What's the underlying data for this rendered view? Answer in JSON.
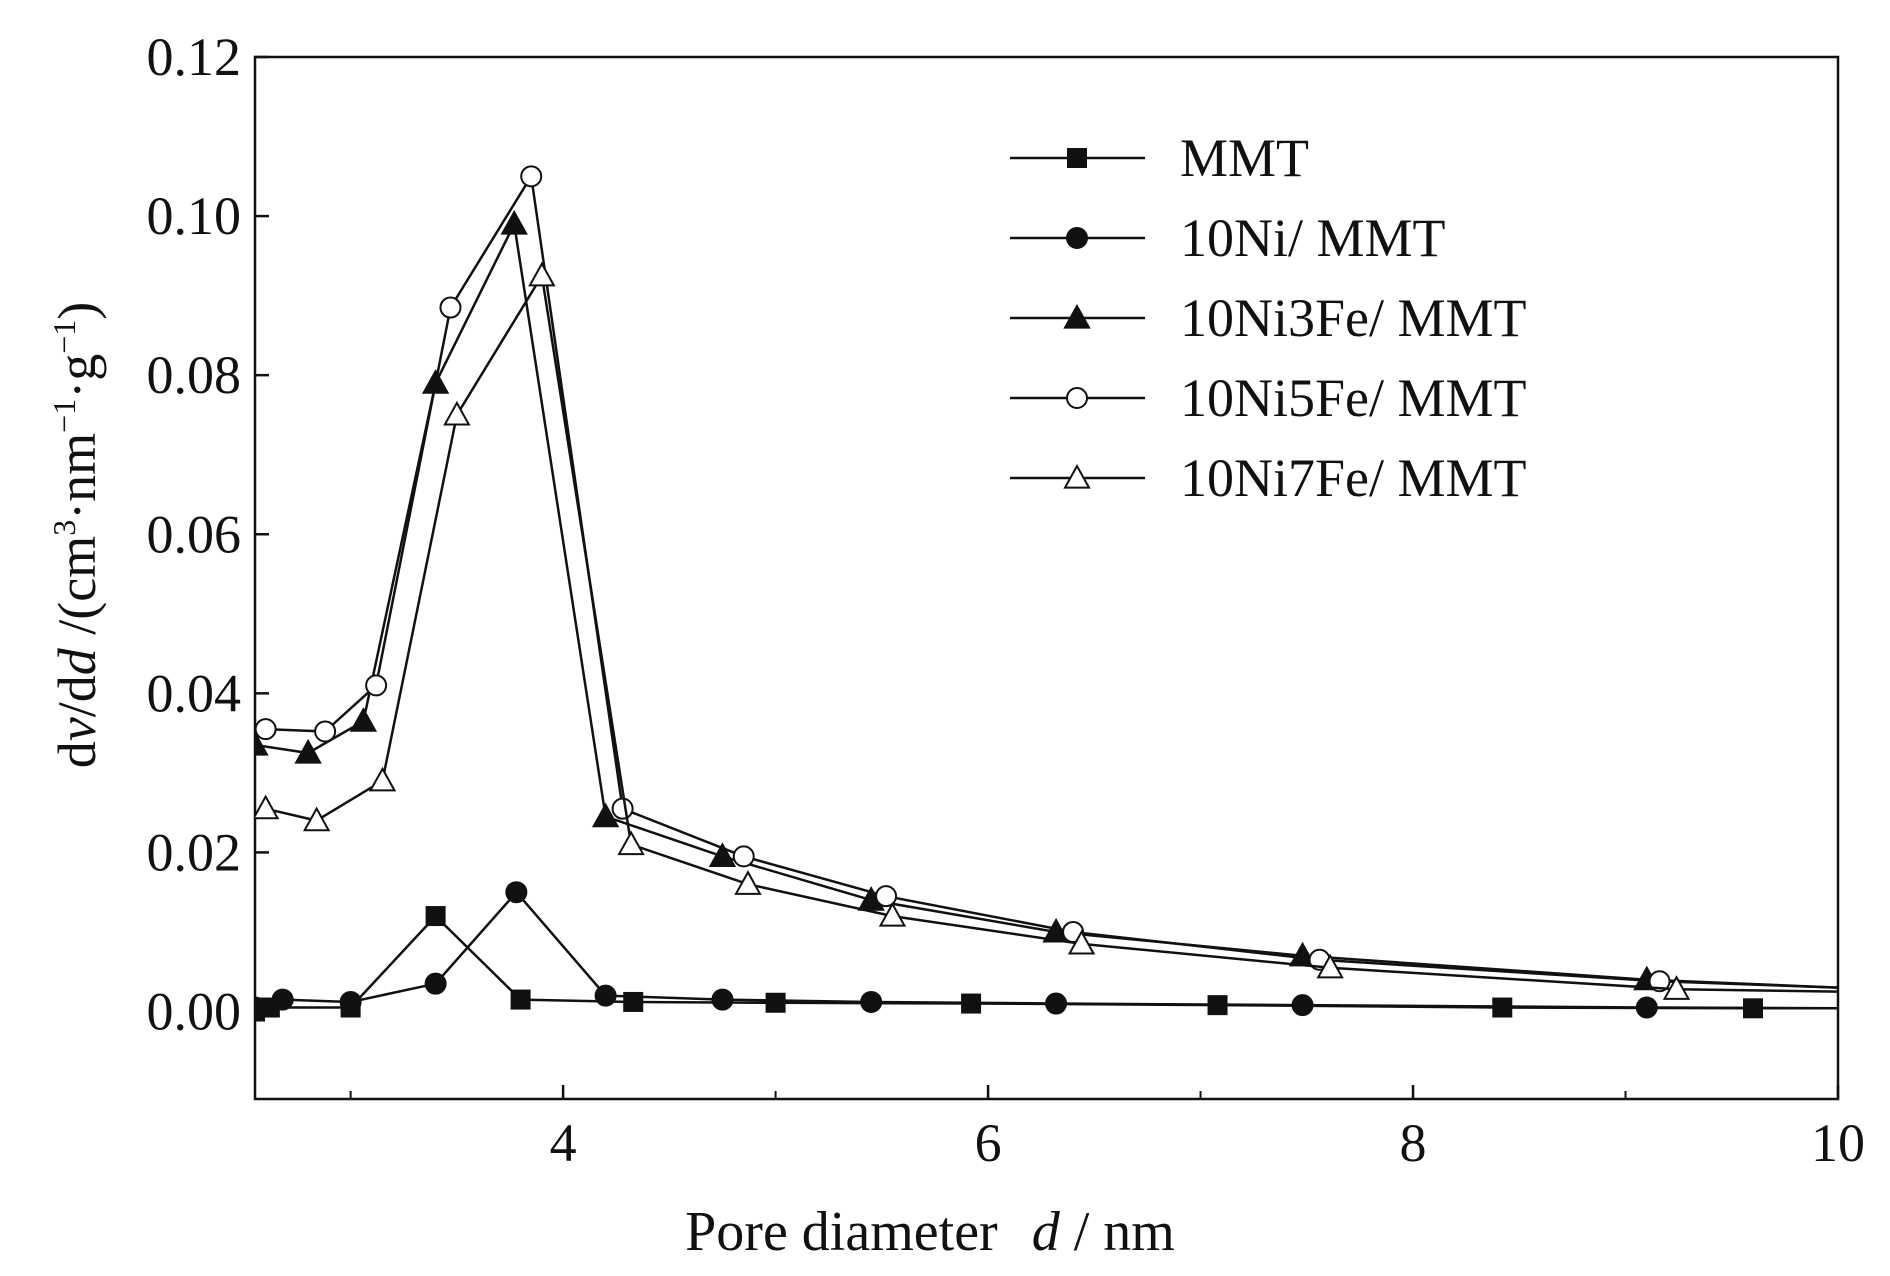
{
  "chart_data": {
    "type": "line",
    "title": "",
    "xlabel": {
      "main": "Pore diameter",
      "var": "d",
      "unit": " / nm"
    },
    "ylabel": {
      "main": "dv/dd /(cm3·nm−1·g−1)",
      "parts": [
        "d",
        "v",
        "/d",
        "d",
        " /(cm",
        "3",
        "·nm",
        "−1",
        "·g",
        "−1",
        ")"
      ]
    },
    "xlim": [
      2.55,
      10
    ],
    "ylim": [
      -0.011,
      0.12
    ],
    "x_ticks": [
      4,
      6,
      8,
      10
    ],
    "x_tick_labels": [
      "4",
      "6",
      "8",
      "10"
    ],
    "x_minor_ticks": [
      3,
      5,
      7,
      9
    ],
    "y_ticks": [
      0.0,
      0.02,
      0.04,
      0.06,
      0.08,
      0.1,
      0.12
    ],
    "y_tick_labels": [
      "0.00",
      "0.02",
      "0.04",
      "0.06",
      "0.08",
      "0.10",
      "0.12"
    ],
    "grid": false,
    "legend_position": "top-right",
    "series": [
      {
        "name": "MMT",
        "marker": "square-filled",
        "x": [
          2.55,
          2.62,
          3.0,
          3.4,
          3.8,
          4.33,
          5.0,
          5.92,
          7.08,
          8.42,
          9.6,
          10.0
        ],
        "y": [
          0.0,
          0.0005,
          0.0005,
          0.012,
          0.0015,
          0.0012,
          0.0011,
          0.001,
          0.0008,
          0.0005,
          0.0004,
          0.0004
        ]
      },
      {
        "name": "10Ni/ MMT",
        "marker": "circle-filled",
        "x": [
          2.55,
          2.68,
          3.0,
          3.4,
          3.78,
          4.2,
          4.75,
          5.45,
          6.32,
          7.48,
          9.1,
          10.0
        ],
        "y": [
          0.0005,
          0.0015,
          0.0012,
          0.0035,
          0.015,
          0.002,
          0.0015,
          0.0012,
          0.001,
          0.0008,
          0.0005,
          0.0004
        ]
      },
      {
        "name": "10Ni3Fe/ MMT",
        "marker": "triangle-filled",
        "x": [
          2.55,
          2.8,
          3.06,
          3.4,
          3.77,
          4.2,
          4.75,
          5.45,
          6.32,
          7.48,
          9.1,
          10.0
        ],
        "y": [
          0.0335,
          0.0325,
          0.0365,
          0.079,
          0.099,
          0.0245,
          0.0195,
          0.014,
          0.01,
          0.007,
          0.004,
          0.003
        ]
      },
      {
        "name": "10Ni5Fe/ MMT",
        "marker": "circle-open",
        "x": [
          2.6,
          2.88,
          3.12,
          3.47,
          3.85,
          4.28,
          4.85,
          5.52,
          6.4,
          7.56,
          9.16,
          10.0
        ],
        "y": [
          0.0355,
          0.0352,
          0.041,
          0.0885,
          0.105,
          0.0255,
          0.0195,
          0.0145,
          0.01,
          0.0065,
          0.0038,
          0.003
        ]
      },
      {
        "name": "10Ni7Fe/ MMT",
        "marker": "triangle-open",
        "x": [
          2.6,
          2.84,
          3.15,
          3.5,
          3.9,
          4.32,
          4.87,
          5.55,
          6.44,
          7.61,
          9.24,
          10.0
        ],
        "y": [
          0.0255,
          0.024,
          0.029,
          0.075,
          0.0925,
          0.021,
          0.016,
          0.012,
          0.0085,
          0.0055,
          0.0028,
          0.0025
        ]
      }
    ]
  }
}
